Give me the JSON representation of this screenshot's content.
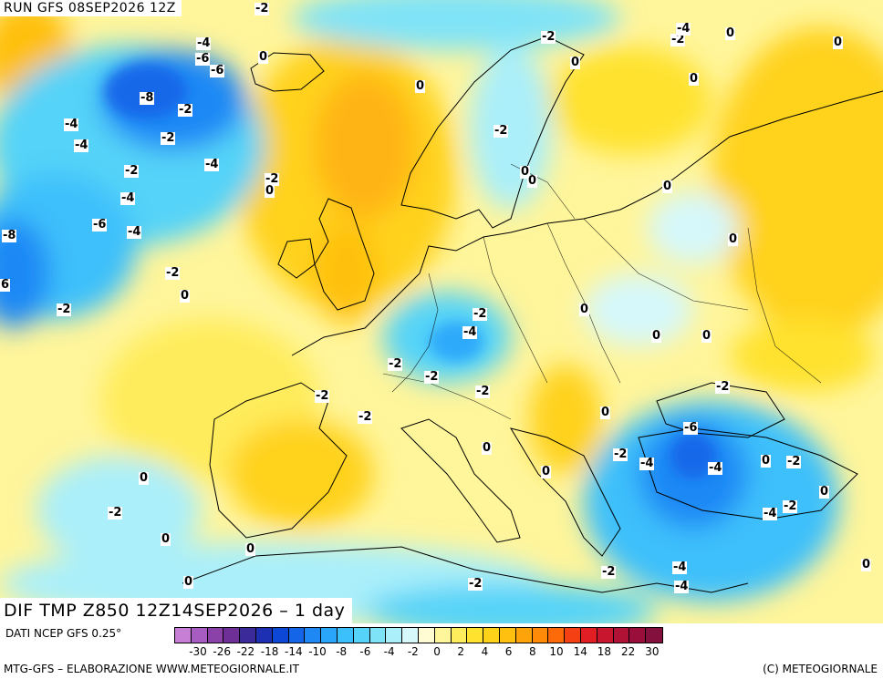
{
  "header": {
    "run_label": "RUN GFS 08SEP2026 12Z"
  },
  "title": {
    "main": "DIF TMP Z850 12Z14SEP2026 – 1 day"
  },
  "footer": {
    "source": "DATI NCEP GFS 0.25°",
    "credit_left": "MTG-GFS – ELABORAZIONE WWW.METEOGIORNALE.IT",
    "credit_right": "(C) METEOGIORNALE"
  },
  "legend": {
    "colors": [
      "#c77fd6",
      "#a65cc0",
      "#8b42a8",
      "#6e2f96",
      "#3b2a9a",
      "#1d2fb3",
      "#0d47d6",
      "#1565e8",
      "#1e88f5",
      "#29a6fb",
      "#3cc0fb",
      "#55d3f8",
      "#7fe3f7",
      "#aaeffa",
      "#d6f8fb",
      "#fffbd2",
      "#fff59b",
      "#ffec5c",
      "#ffe22e",
      "#ffd21a",
      "#ffc010",
      "#ffa30a",
      "#ff8a08",
      "#ff6a08",
      "#f44012",
      "#e01e24",
      "#c8162e",
      "#b01236",
      "#9a0e3c",
      "#84103e"
    ],
    "tick_labels": [
      "-30",
      "-26",
      "-22",
      "-18",
      "-14",
      "-10",
      "-8",
      "-6",
      "-4",
      "-2",
      "0",
      "2",
      "4",
      "6",
      "8",
      "10",
      "14",
      "18",
      "22",
      "30"
    ]
  },
  "contour_labels": [
    {
      "text": "-2"
    },
    {
      "text": "-4"
    },
    {
      "text": "-6"
    },
    {
      "text": "-6"
    },
    {
      "text": "-8"
    },
    {
      "text": "-2"
    },
    {
      "text": "-4"
    },
    {
      "text": "-4"
    },
    {
      "text": "-2"
    },
    {
      "text": "-4"
    },
    {
      "text": "-2"
    },
    {
      "text": "-6"
    },
    {
      "text": "-4"
    },
    {
      "text": "-8"
    },
    {
      "text": "-2"
    },
    {
      "text": "0"
    },
    {
      "text": "-4"
    },
    {
      "text": "-2"
    },
    {
      "text": "0"
    },
    {
      "text": "-2"
    },
    {
      "text": "0"
    },
    {
      "text": "-2"
    },
    {
      "text": "0"
    },
    {
      "text": "0"
    },
    {
      "text": "0"
    },
    {
      "text": "-2"
    },
    {
      "text": "-2"
    },
    {
      "text": "-4"
    },
    {
      "text": "0"
    },
    {
      "text": "0"
    },
    {
      "text": "0"
    },
    {
      "text": "0"
    },
    {
      "text": "0"
    },
    {
      "text": "0"
    },
    {
      "text": "-2"
    },
    {
      "text": "-4"
    },
    {
      "text": "-2"
    },
    {
      "text": "-2"
    },
    {
      "text": "-2"
    },
    {
      "text": "-2"
    },
    {
      "text": "-2"
    },
    {
      "text": "0"
    },
    {
      "text": "0"
    },
    {
      "text": "0"
    },
    {
      "text": "-2"
    },
    {
      "text": "0"
    },
    {
      "text": "-6"
    },
    {
      "text": "-2"
    },
    {
      "text": "-4"
    },
    {
      "text": "-4"
    },
    {
      "text": "0"
    },
    {
      "text": "-2"
    },
    {
      "text": "-2"
    },
    {
      "text": "-4"
    },
    {
      "text": "0"
    },
    {
      "text": "0"
    },
    {
      "text": "-2"
    },
    {
      "text": "0"
    },
    {
      "text": "0"
    },
    {
      "text": "0"
    },
    {
      "text": "-2"
    },
    {
      "text": "-2"
    },
    {
      "text": "-4"
    },
    {
      "text": "-4"
    },
    {
      "text": "0"
    },
    {
      "text": "0"
    },
    {
      "text": "6"
    },
    {
      "text": "-2"
    },
    {
      "text": "0"
    }
  ]
}
